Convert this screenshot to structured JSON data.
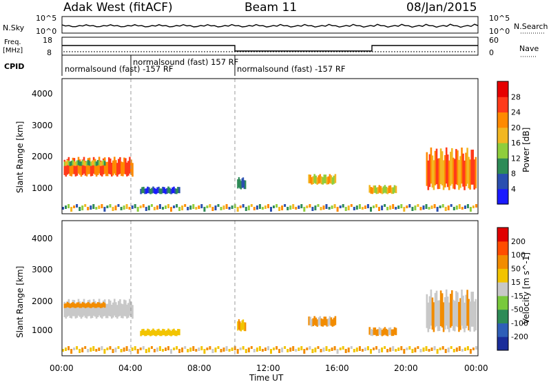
{
  "header": {
    "station": "Adak West (fitACF)",
    "beam": "Beam 11",
    "date": "08/Jan/2015"
  },
  "panels": {
    "nsky": {
      "label": "N.Sky",
      "label_right": "N.Search",
      "tick_top": "10^5",
      "tick_bottom": "10^0",
      "tick_top_right": "10^5",
      "tick_bottom_right": "10^0"
    },
    "freq": {
      "label_line1": "Freq.",
      "label_line2": "[MHz]",
      "label_right": "Nave",
      "tick_top": "18",
      "tick_bottom": "8",
      "tick_top_right": "60",
      "tick_bottom_right": "0"
    },
    "cpid": {
      "label": "CPID",
      "segments": [
        {
          "start_hour": 0.0,
          "end_hour": 4.0,
          "text": "normalsound (fast) -157 RF"
        },
        {
          "start_hour": 4.0,
          "end_hour": 10.0,
          "text": "normalsound (fast) 157 RF"
        },
        {
          "start_hour": 10.0,
          "end_hour": 24.0,
          "text": "normalsound (fast) -157 RF"
        }
      ]
    }
  },
  "axes": {
    "x_ticks": [
      "00:00",
      "04:00",
      "08:00",
      "12:00",
      "16:00",
      "20:00",
      "00:00"
    ],
    "x_label": "Time UT",
    "y_label": "Slant Range [km]",
    "y_ticks": [
      "1000",
      "2000",
      "3000",
      "4000"
    ]
  },
  "colorbars": {
    "power": {
      "label": "Power [dB]",
      "ticks": [
        "4",
        "8",
        "12",
        "16",
        "20",
        "24",
        "28"
      ],
      "colors": [
        "#1a1aff",
        "#2a4fb0",
        "#2e8b57",
        "#8fce3c",
        "#f2b722",
        "#ff8a00",
        "#ff3a1a",
        "#e60000"
      ]
    },
    "velocity": {
      "label": "Velocity [m s^-1]",
      "ticks": [
        "200",
        "100",
        "50",
        "15",
        "-15",
        "-50",
        "-100",
        "-200"
      ],
      "colors": [
        "#1a2d9a",
        "#2f5fb8",
        "#2e8b57",
        "#79c93c",
        "#c8c8c8",
        "#f2c400",
        "#f28c00",
        "#ff4d00",
        "#e00000"
      ]
    }
  },
  "chart_data": {
    "type": "heatmap",
    "title": "Adak West (fitACF) Beam 11 08/Jan/2015",
    "xlabel": "Time UT",
    "ylabel": "Slant Range [km]",
    "xlim_hours": [
      0,
      24
    ],
    "ylim_km": [
      180,
      4500
    ],
    "power_echo_regions": [
      {
        "t0": 0.1,
        "t1": 4.1,
        "r0": 1350,
        "r1": 2000,
        "power_db": 24
      },
      {
        "t0": 0.1,
        "t1": 2.5,
        "r0": 1700,
        "r1": 1900,
        "power_db": 14
      },
      {
        "t0": 4.5,
        "t1": 6.8,
        "r0": 800,
        "r1": 1050,
        "power_db": 6
      },
      {
        "t0": 10.1,
        "t1": 10.6,
        "r0": 950,
        "r1": 1350,
        "power_db": 8
      },
      {
        "t0": 14.2,
        "t1": 15.8,
        "r0": 1100,
        "r1": 1450,
        "power_db": 18
      },
      {
        "t0": 17.7,
        "t1": 19.3,
        "r0": 800,
        "r1": 1100,
        "power_db": 18
      },
      {
        "t0": 21.0,
        "t1": 23.9,
        "r0": 900,
        "r1": 2300,
        "power_db": 22
      }
    ],
    "power_colorbar_range_db": [
      0,
      32
    ],
    "velocity_colorbar_range": [
      -200,
      200
    ],
    "cpid_change_hours": [
      4,
      10
    ]
  }
}
